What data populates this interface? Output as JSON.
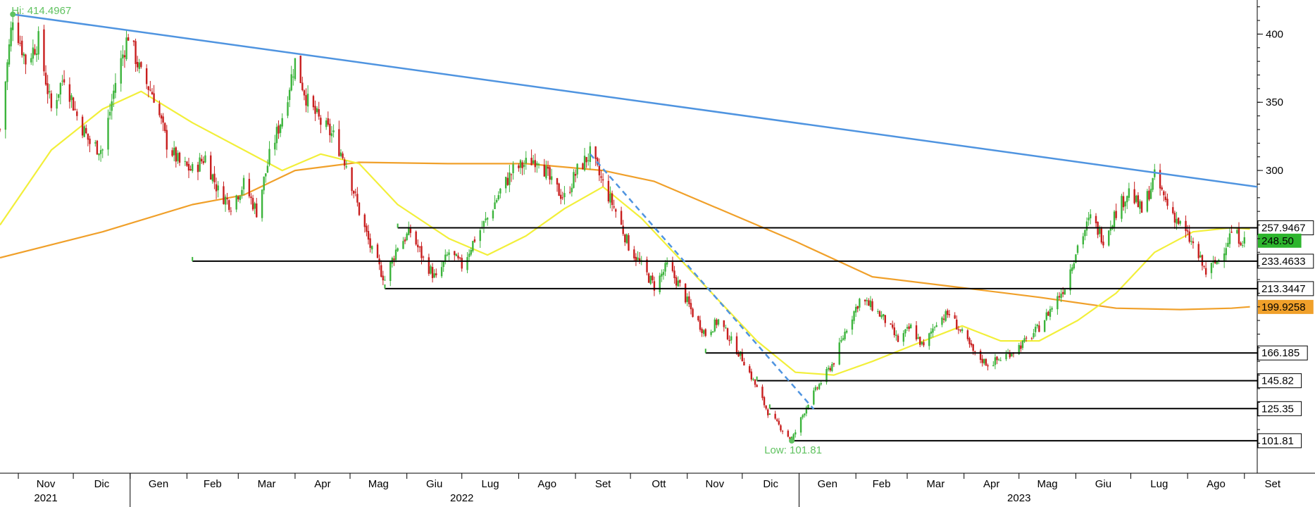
{
  "chart_data": {
    "type": "candlestick",
    "annotations": {
      "high": {
        "label": "Hi: 414.4967",
        "date": "2021-10-29",
        "value": 414.4967
      },
      "low": {
        "label": "Low: 101.81",
        "date": "2022-12-28",
        "value": 101.81
      }
    },
    "y_axis": {
      "range": [
        78,
        425
      ],
      "ticks": [
        400,
        350,
        300
      ]
    },
    "x_axis": {
      "range": [
        "2021-10-22",
        "2023-09-08"
      ],
      "month_ticks": [
        {
          "label": "Nov",
          "date": "2021-11-01"
        },
        {
          "label": "Dic",
          "date": "2021-12-01"
        },
        {
          "label": "Gen",
          "date": "2022-01-01"
        },
        {
          "label": "Feb",
          "date": "2022-02-01"
        },
        {
          "label": "Mar",
          "date": "2022-03-01"
        },
        {
          "label": "Apr",
          "date": "2022-04-01"
        },
        {
          "label": "Mag",
          "date": "2022-05-01"
        },
        {
          "label": "Giu",
          "date": "2022-06-01"
        },
        {
          "label": "Lug",
          "date": "2022-07-01"
        },
        {
          "label": "Ago",
          "date": "2022-08-01"
        },
        {
          "label": "Set",
          "date": "2022-09-01"
        },
        {
          "label": "Ott",
          "date": "2022-10-01"
        },
        {
          "label": "Nov",
          "date": "2022-11-01"
        },
        {
          "label": "Dic",
          "date": "2022-12-01"
        },
        {
          "label": "Gen",
          "date": "2023-01-01"
        },
        {
          "label": "Feb",
          "date": "2023-02-01"
        },
        {
          "label": "Mar",
          "date": "2023-03-01"
        },
        {
          "label": "Apr",
          "date": "2023-04-01"
        },
        {
          "label": "Mag",
          "date": "2023-05-01"
        },
        {
          "label": "Giu",
          "date": "2023-06-01"
        },
        {
          "label": "Lug",
          "date": "2023-07-01"
        },
        {
          "label": "Ago",
          "date": "2023-08-01"
        },
        {
          "label": "Set",
          "date": "2023-09-01"
        }
      ],
      "year_labels": [
        {
          "label": "2021",
          "date": "2021-11-16"
        },
        {
          "label": "2022",
          "date": "2022-07-01"
        },
        {
          "label": "2023",
          "date": "2023-05-01"
        }
      ]
    },
    "price_path": [
      [
        "2021-10-22",
        330
      ],
      [
        "2021-10-29",
        414
      ],
      [
        "2021-11-05",
        380
      ],
      [
        "2021-11-12",
        395
      ],
      [
        "2021-11-19",
        345
      ],
      [
        "2021-11-26",
        370
      ],
      [
        "2021-12-03",
        340
      ],
      [
        "2021-12-10",
        320
      ],
      [
        "2021-12-17",
        315
      ],
      [
        "2021-12-24",
        365
      ],
      [
        "2021-12-31",
        400
      ],
      [
        "2022-01-07",
        370
      ],
      [
        "2022-01-14",
        355
      ],
      [
        "2022-01-21",
        320
      ],
      [
        "2022-01-28",
        305
      ],
      [
        "2022-02-04",
        300
      ],
      [
        "2022-02-11",
        310
      ],
      [
        "2022-02-18",
        285
      ],
      [
        "2022-02-25",
        275
      ],
      [
        "2022-03-04",
        290
      ],
      [
        "2022-03-11",
        270
      ],
      [
        "2022-03-18",
        310
      ],
      [
        "2022-03-25",
        340
      ],
      [
        "2022-04-01",
        380
      ],
      [
        "2022-04-08",
        350
      ],
      [
        "2022-04-15",
        335
      ],
      [
        "2022-04-22",
        325
      ],
      [
        "2022-04-29",
        305
      ],
      [
        "2022-05-06",
        270
      ],
      [
        "2022-05-13",
        240
      ],
      [
        "2022-05-20",
        220
      ],
      [
        "2022-05-27",
        245
      ],
      [
        "2022-06-03",
        255
      ],
      [
        "2022-06-10",
        235
      ],
      [
        "2022-06-17",
        220
      ],
      [
        "2022-06-24",
        240
      ],
      [
        "2022-07-01",
        230
      ],
      [
        "2022-07-08",
        250
      ],
      [
        "2022-07-15",
        265
      ],
      [
        "2022-07-22",
        285
      ],
      [
        "2022-07-29",
        300
      ],
      [
        "2022-08-05",
        305
      ],
      [
        "2022-08-12",
        310
      ],
      [
        "2022-08-19",
        290
      ],
      [
        "2022-08-26",
        280
      ],
      [
        "2022-09-02",
        300
      ],
      [
        "2022-09-09",
        312
      ],
      [
        "2022-09-16",
        290
      ],
      [
        "2022-09-23",
        270
      ],
      [
        "2022-09-30",
        245
      ],
      [
        "2022-10-07",
        230
      ],
      [
        "2022-10-14",
        215
      ],
      [
        "2022-10-21",
        230
      ],
      [
        "2022-10-28",
        215
      ],
      [
        "2022-11-04",
        195
      ],
      [
        "2022-11-11",
        180
      ],
      [
        "2022-11-18",
        190
      ],
      [
        "2022-11-25",
        175
      ],
      [
        "2022-12-02",
        160
      ],
      [
        "2022-12-09",
        140
      ],
      [
        "2022-12-16",
        120
      ],
      [
        "2022-12-23",
        110
      ],
      [
        "2022-12-28",
        102
      ],
      [
        "2023-01-06",
        130
      ],
      [
        "2023-01-13",
        145
      ],
      [
        "2023-01-20",
        160
      ],
      [
        "2023-01-27",
        185
      ],
      [
        "2023-02-03",
        205
      ],
      [
        "2023-02-10",
        200
      ],
      [
        "2023-02-17",
        190
      ],
      [
        "2023-02-24",
        175
      ],
      [
        "2023-03-03",
        185
      ],
      [
        "2023-03-10",
        170
      ],
      [
        "2023-03-17",
        190
      ],
      [
        "2023-03-24",
        195
      ],
      [
        "2023-03-31",
        180
      ],
      [
        "2023-04-07",
        165
      ],
      [
        "2023-04-14",
        158
      ],
      [
        "2023-04-21",
        162
      ],
      [
        "2023-04-28",
        168
      ],
      [
        "2023-05-05",
        175
      ],
      [
        "2023-05-12",
        185
      ],
      [
        "2023-05-19",
        200
      ],
      [
        "2023-05-26",
        215
      ],
      [
        "2023-06-02",
        245
      ],
      [
        "2023-06-09",
        265
      ],
      [
        "2023-06-16",
        250
      ],
      [
        "2023-06-23",
        270
      ],
      [
        "2023-06-30",
        285
      ],
      [
        "2023-07-07",
        270
      ],
      [
        "2023-07-14",
        295
      ],
      [
        "2023-07-21",
        275
      ],
      [
        "2023-07-28",
        260
      ],
      [
        "2023-08-04",
        245
      ],
      [
        "2023-08-11",
        225
      ],
      [
        "2023-08-18",
        235
      ],
      [
        "2023-08-25",
        255
      ],
      [
        "2023-09-01",
        248
      ]
    ],
    "candle_color_up": "#3cb43c",
    "candle_color_down": "#c81e1e",
    "moving_average_short": {
      "color": "#f2ef3a",
      "points": [
        [
          "2021-10-22",
          260
        ],
        [
          "2021-11-19",
          315
        ],
        [
          "2021-12-17",
          345
        ],
        [
          "2022-01-07",
          358
        ],
        [
          "2022-02-04",
          335
        ],
        [
          "2022-03-04",
          315
        ],
        [
          "2022-03-25",
          300
        ],
        [
          "2022-04-15",
          312
        ],
        [
          "2022-05-06",
          305
        ],
        [
          "2022-05-27",
          275
        ],
        [
          "2022-06-24",
          250
        ],
        [
          "2022-07-15",
          238
        ],
        [
          "2022-08-05",
          252
        ],
        [
          "2022-08-26",
          272
        ],
        [
          "2022-09-16",
          288
        ],
        [
          "2022-10-07",
          265
        ],
        [
          "2022-10-28",
          235
        ],
        [
          "2022-11-18",
          205
        ],
        [
          "2022-12-09",
          175
        ],
        [
          "2022-12-30",
          152
        ],
        [
          "2023-01-20",
          150
        ],
        [
          "2023-02-10",
          160
        ],
        [
          "2023-03-10",
          175
        ],
        [
          "2023-03-31",
          186
        ],
        [
          "2023-04-21",
          175
        ],
        [
          "2023-05-12",
          175
        ],
        [
          "2023-06-02",
          190
        ],
        [
          "2023-06-23",
          210
        ],
        [
          "2023-07-14",
          240
        ],
        [
          "2023-08-04",
          255
        ],
        [
          "2023-08-25",
          258
        ],
        [
          "2023-09-04",
          257
        ]
      ]
    },
    "moving_average_long": {
      "color": "#f0a02a",
      "points": [
        [
          "2021-10-22",
          236
        ],
        [
          "2021-12-17",
          255
        ],
        [
          "2022-02-04",
          275
        ],
        [
          "2022-03-04",
          282
        ],
        [
          "2022-04-01",
          300
        ],
        [
          "2022-05-06",
          306
        ],
        [
          "2022-06-24",
          305
        ],
        [
          "2022-08-05",
          305
        ],
        [
          "2022-09-16",
          300
        ],
        [
          "2022-10-14",
          292
        ],
        [
          "2022-11-18",
          272
        ],
        [
          "2022-12-30",
          248
        ],
        [
          "2023-02-10",
          222
        ],
        [
          "2023-03-31",
          214
        ],
        [
          "2023-05-12",
          207
        ],
        [
          "2023-06-23",
          199
        ],
        [
          "2023-07-28",
          198
        ],
        [
          "2023-08-25",
          199
        ],
        [
          "2023-09-04",
          200
        ]
      ]
    },
    "trendline": {
      "color": "#4f94e0",
      "from": [
        "2021-10-29",
        414.5
      ],
      "to": [
        "2023-09-08",
        288
      ]
    },
    "dashed_trendline": {
      "color": "#4f94e0",
      "from": [
        "2022-09-09",
        312
      ],
      "to": [
        "2023-01-09",
        125
      ]
    },
    "horizontal_levels": [
      {
        "value": 257.9467,
        "label": "257.9467",
        "from": "2022-05-27",
        "label_bg": "#ffffff",
        "label_color": "#000000"
      },
      {
        "value": 233.4633,
        "label": "233.4633",
        "from": "2022-02-04",
        "label_bg": "#ffffff",
        "label_color": "#000000"
      },
      {
        "value": 213.3447,
        "label": "213.3447",
        "from": "2022-05-20",
        "label_bg": "#ffffff",
        "label_color": "#000000"
      },
      {
        "value": 166.185,
        "label": "166.185",
        "from": "2022-11-11",
        "label_bg": "#ffffff",
        "label_color": "#000000"
      },
      {
        "value": 145.82,
        "label": "145.82",
        "from": "2022-12-09",
        "label_bg": "#ffffff",
        "label_color": "#000000"
      },
      {
        "value": 125.35,
        "label": "125.35",
        "from": "2022-12-16",
        "label_bg": "#ffffff",
        "label_color": "#000000"
      },
      {
        "value": 101.81,
        "label": "101.81",
        "from": "2022-12-28",
        "label_bg": "#ffffff",
        "label_color": "#000000"
      }
    ],
    "price_labels": [
      {
        "value": 248.5,
        "label": "248.50",
        "bg": "#2db52d",
        "color": "#000000"
      },
      {
        "value": 199.9258,
        "label": "199.9258",
        "bg": "#f0a02a",
        "color": "#000000"
      }
    ]
  }
}
